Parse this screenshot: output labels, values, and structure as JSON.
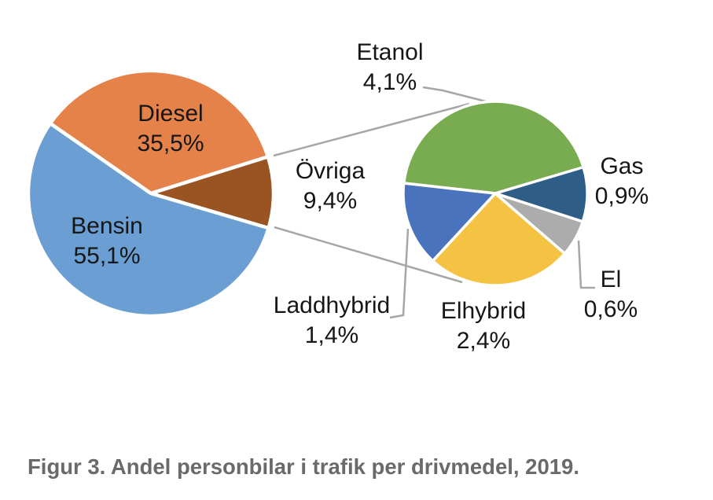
{
  "chart_data": {
    "type": "pie",
    "variant": "pie-of-pie",
    "caption": "Figur 3. Andel personbilar i trafik per drivmedel, 2019.",
    "legend": "none",
    "label_style": "category name + percentage, comma decimal separator",
    "main_pie": {
      "slices": [
        {
          "label": "Bensin",
          "value_pct": 55.1,
          "display": "55,1%",
          "color": "#6B9FD4"
        },
        {
          "label": "Diesel",
          "value_pct": 35.5,
          "display": "35,5%",
          "color": "#E4824A"
        },
        {
          "label": "Övriga",
          "value_pct": 9.4,
          "display": "9,4%",
          "color": "#9A5322"
        }
      ]
    },
    "secondary_pie": {
      "group_label": "Övriga",
      "slices": [
        {
          "label": "Etanol",
          "value_pct": 4.1,
          "display": "4,1%",
          "color": "#79AC50"
        },
        {
          "label": "Gas",
          "value_pct": 0.9,
          "display": "0,9%",
          "color": "#2E5E88"
        },
        {
          "label": "El",
          "value_pct": 0.6,
          "display": "0,6%",
          "color": "#ACACAC"
        },
        {
          "label": "Elhybrid",
          "value_pct": 2.4,
          "display": "2,4%",
          "color": "#F5C343"
        },
        {
          "label": "Laddhybrid",
          "value_pct": 1.4,
          "display": "1,4%",
          "color": "#4A73BE"
        }
      ]
    },
    "colors": {
      "connector_gray": "#A6A6A6",
      "caption_gray": "#6A6A6A",
      "label_text": "#161616",
      "slice_border": "#FFFFFF"
    }
  }
}
